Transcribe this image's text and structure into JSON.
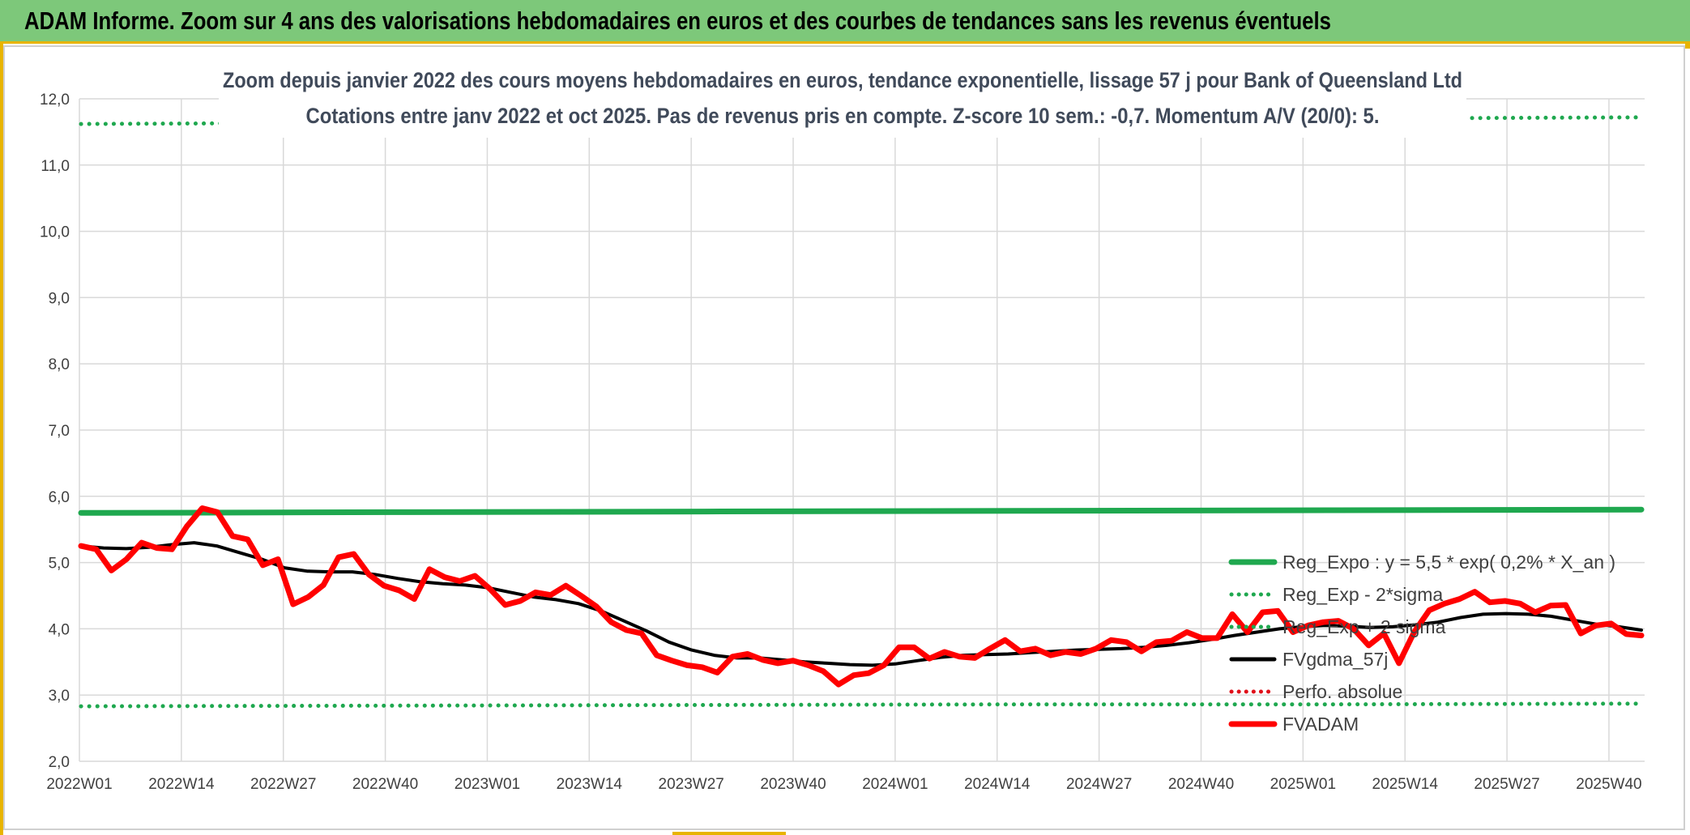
{
  "banner": {
    "title": "ADAM Informe. Zoom sur 4 ans des valorisations hebdomadaires en euros et des courbes de tendances sans les revenus éventuels"
  },
  "chart_data": {
    "type": "line",
    "title": "Zoom depuis janvier 2022 des cours moyens hebdomadaires en euros, tendance exponentielle, lissage 57 j pour Bank of Queensland Ltd",
    "subtitle": "Cotations entre janv 2022 et oct 2025. Pas de revenus pris en compte. Z-score 10 sem.: -0,7. Momentum A/V (20/0): 5.",
    "xlabel": "",
    "ylabel": "",
    "ylim": [
      2.0,
      12.0
    ],
    "y_ticks": [
      "2,0",
      "3,0",
      "4,0",
      "5,0",
      "6,0",
      "7,0",
      "8,0",
      "9,0",
      "10,0",
      "11,0",
      "12,0"
    ],
    "x_ticks": [
      "2022W01",
      "2022W14",
      "2022W27",
      "2022W40",
      "2023W01",
      "2023W14",
      "2023W27",
      "2023W40",
      "2024W01",
      "2024W14",
      "2024W27",
      "2024W40",
      "2025W01",
      "2025W14",
      "2025W27",
      "2025W40"
    ],
    "grid": true,
    "legend_position": "bottom-right",
    "series": [
      {
        "name": "Reg_Expo : y = 5,5 * exp( 0,2% *  X_an )",
        "color": "#1fa84f",
        "style": "solid",
        "values": [
          5.75,
          5.76,
          5.77,
          5.78,
          5.79,
          5.8
        ]
      },
      {
        "name": "Reg_Exp - 2*sigma",
        "color": "#1fa84f",
        "style": "dotted",
        "values": [
          2.83,
          2.84,
          2.85,
          2.86,
          2.86,
          2.87
        ]
      },
      {
        "name": "Reg_Exp + 2 sigma",
        "color": "#1fa84f",
        "style": "dotted",
        "values": [
          11.62,
          11.64,
          11.66,
          11.68,
          11.7,
          11.72
        ]
      },
      {
        "name": "FVgdma_57j",
        "color": "#000000",
        "style": "solid",
        "values": [
          5.25,
          5.22,
          5.21,
          5.23,
          5.27,
          5.3,
          5.25,
          5.15,
          5.05,
          4.92,
          4.87,
          4.86,
          4.86,
          4.82,
          4.76,
          4.71,
          4.68,
          4.66,
          4.62,
          4.55,
          4.48,
          4.44,
          4.38,
          4.27,
          4.12,
          3.97,
          3.8,
          3.68,
          3.6,
          3.56,
          3.56,
          3.53,
          3.5,
          3.48,
          3.46,
          3.45,
          3.47,
          3.52,
          3.57,
          3.6,
          3.61,
          3.62,
          3.64,
          3.66,
          3.68,
          3.69,
          3.7,
          3.72,
          3.75,
          3.79,
          3.84,
          3.9,
          3.95,
          4.0,
          4.03,
          4.05,
          4.04,
          4.02,
          4.03,
          4.06,
          4.1,
          4.17,
          4.22,
          4.23,
          4.22,
          4.19,
          4.13,
          4.07,
          4.03,
          3.98
        ]
      },
      {
        "name": "Perfo. absolue",
        "color": "#e0101a",
        "style": "dotted",
        "values": []
      },
      {
        "name": "FVADAM",
        "color": "#ff0000",
        "style": "solid",
        "values": [
          5.25,
          5.2,
          4.88,
          5.05,
          5.3,
          5.22,
          5.2,
          5.55,
          5.82,
          5.76,
          5.4,
          5.35,
          4.96,
          5.05,
          4.37,
          4.48,
          4.66,
          5.08,
          5.13,
          4.82,
          4.65,
          4.58,
          4.45,
          4.9,
          4.78,
          4.72,
          4.8,
          4.6,
          4.36,
          4.42,
          4.55,
          4.51,
          4.65,
          4.5,
          4.34,
          4.1,
          3.98,
          3.93,
          3.6,
          3.52,
          3.45,
          3.42,
          3.34,
          3.58,
          3.62,
          3.53,
          3.48,
          3.52,
          3.45,
          3.36,
          3.16,
          3.3,
          3.33,
          3.45,
          3.72,
          3.72,
          3.55,
          3.65,
          3.58,
          3.56,
          3.7,
          3.83,
          3.66,
          3.7,
          3.6,
          3.65,
          3.62,
          3.7,
          3.83,
          3.8,
          3.66,
          3.8,
          3.82,
          3.95,
          3.86,
          3.86,
          4.22,
          3.95,
          4.25,
          4.27,
          3.95,
          4.05,
          4.1,
          4.12,
          4.0,
          3.75,
          3.93,
          3.48,
          3.95,
          4.28,
          4.38,
          4.45,
          4.56,
          4.4,
          4.42,
          4.38,
          4.25,
          4.35,
          4.36,
          3.93,
          4.05,
          4.08,
          3.92,
          3.9
        ]
      }
    ]
  }
}
